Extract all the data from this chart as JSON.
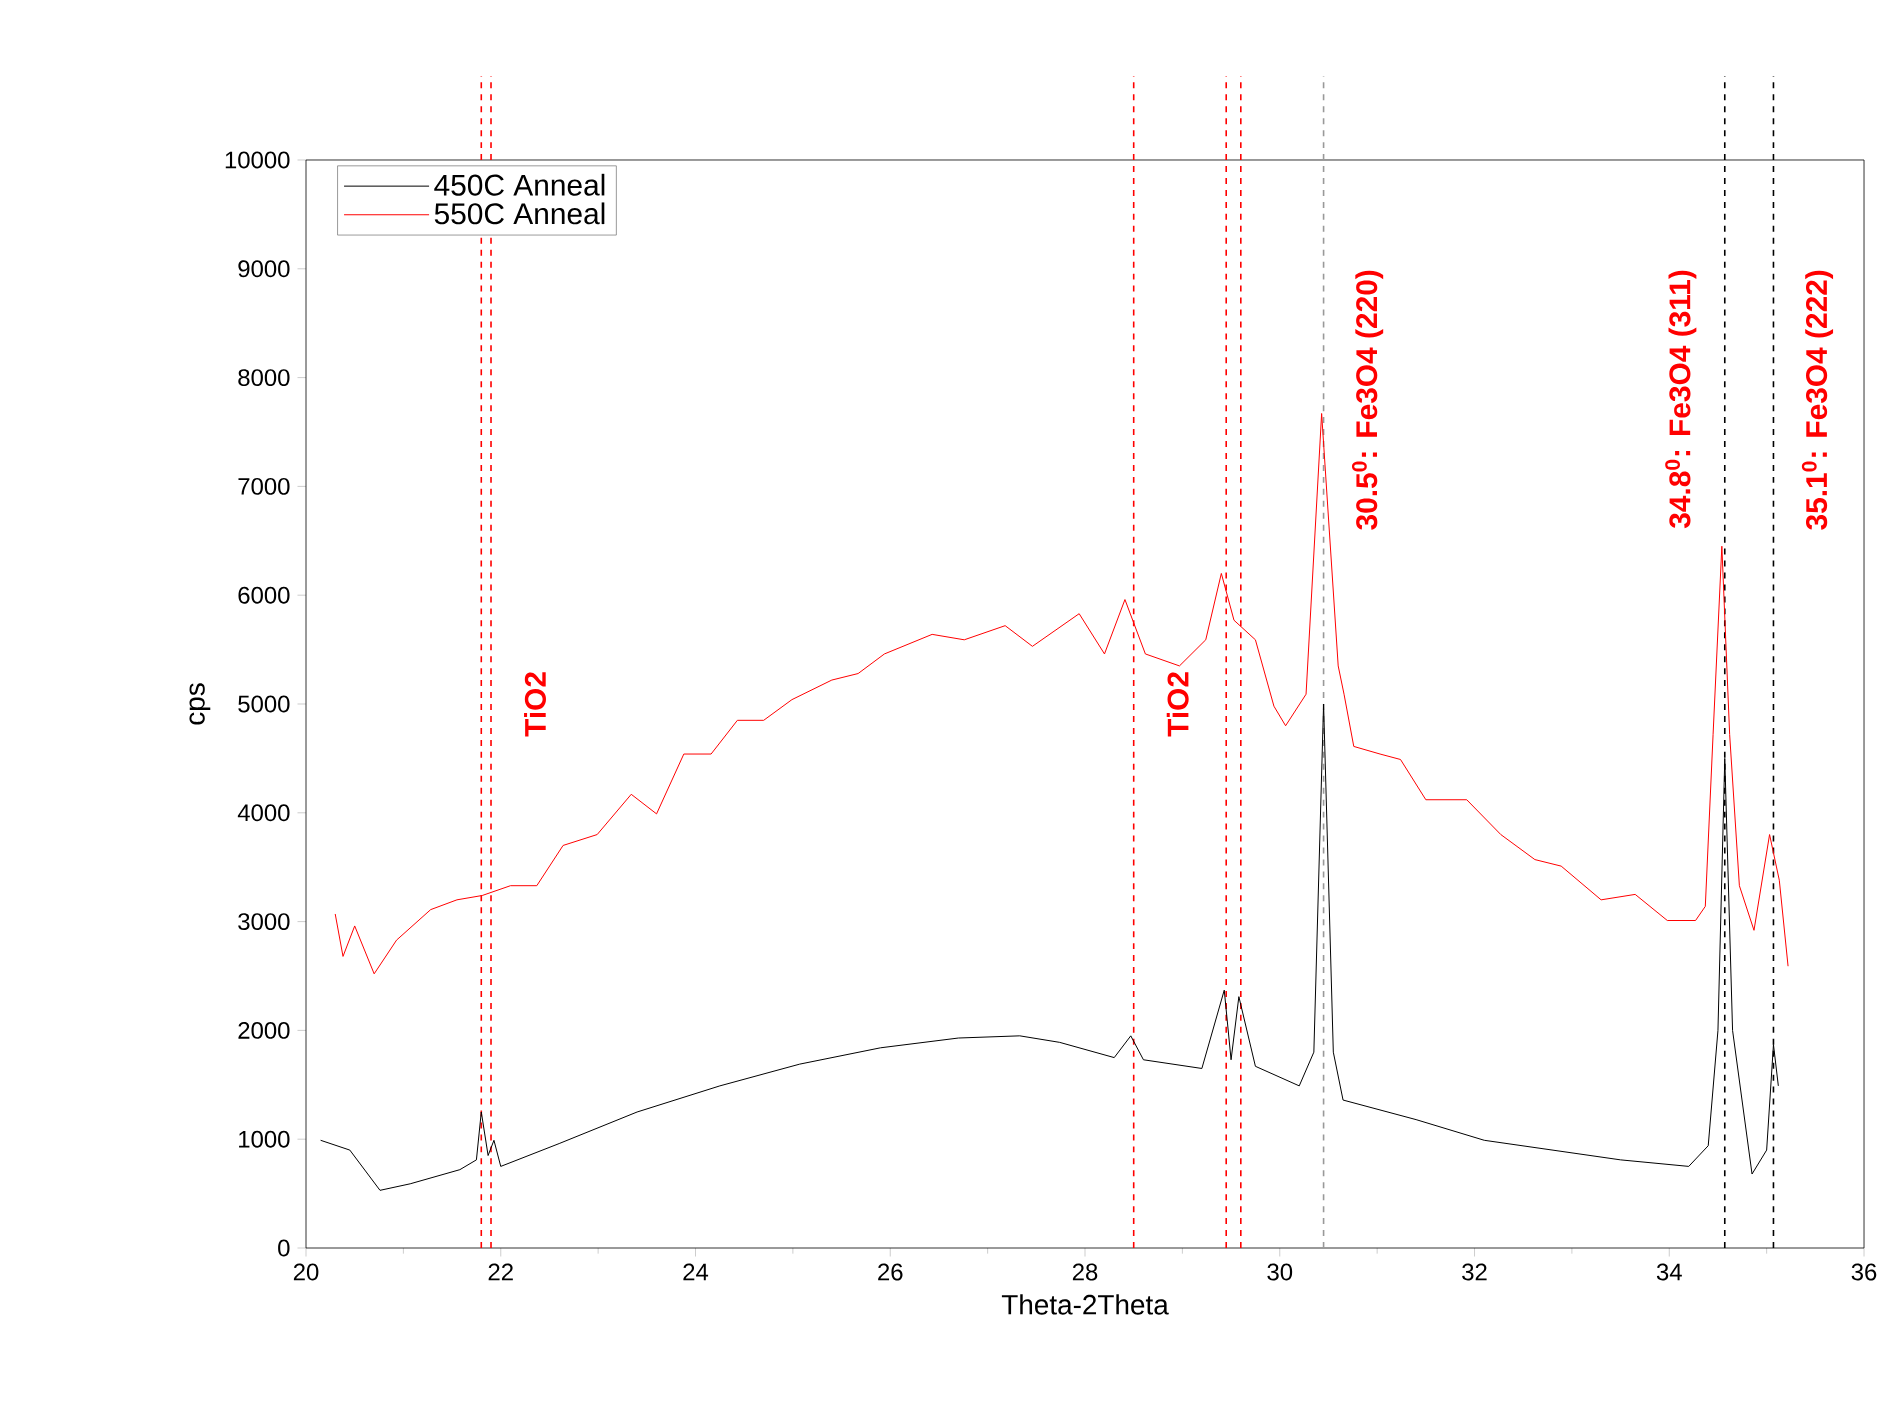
{
  "chart_data": {
    "type": "line",
    "xlabel": "Theta-2Theta",
    "ylabel": "cps",
    "xlim": [
      20,
      36
    ],
    "xticks": [
      20,
      22,
      24,
      26,
      28,
      30,
      32,
      34,
      36
    ],
    "ylim": [
      0,
      10000
    ],
    "yticks": [
      0,
      1000,
      2000,
      3000,
      4000,
      5000,
      6000,
      7000,
      8000,
      9000,
      10000
    ],
    "legend": "top left",
    "grid": false,
    "marker": "none",
    "line_style": "solid",
    "series": [
      {
        "name": "450C Anneal",
        "color": "#000000",
        "x": [
          20.15,
          20.45,
          20.76,
          21.07,
          21.58,
          21.75,
          21.8,
          21.87,
          21.93,
          22.0,
          22.6,
          23.4,
          24.25,
          25.07,
          25.9,
          26.7,
          27.33,
          27.74,
          28.3,
          28.47,
          28.6,
          29.2,
          29.43,
          29.5,
          29.58,
          29.75,
          30.2,
          30.35,
          30.45,
          30.55,
          30.65,
          31.4,
          32.1,
          33.5,
          34.2,
          34.4,
          34.5,
          34.57,
          34.65,
          34.85,
          35.0,
          35.07,
          35.12
        ],
        "values": [
          990,
          900,
          530,
          590,
          720,
          810,
          1250,
          850,
          990,
          750,
          960,
          1250,
          1490,
          1690,
          1840,
          1930,
          1950,
          1890,
          1750,
          1950,
          1730,
          1650,
          2370,
          1730,
          2310,
          1670,
          1490,
          1800,
          5000,
          1800,
          1360,
          1180,
          990,
          810,
          750,
          940,
          2000,
          4500,
          2000,
          680,
          900,
          1870,
          1490
        ]
      },
      {
        "name": "550C Anneal",
        "color": "#ff0000",
        "x": [
          20.3,
          20.38,
          20.5,
          20.7,
          20.93,
          21.28,
          21.55,
          21.81,
          22.1,
          22.37,
          22.64,
          22.99,
          23.34,
          23.6,
          23.88,
          24.16,
          24.43,
          24.7,
          24.99,
          25.4,
          25.67,
          25.94,
          26.43,
          26.76,
          27.18,
          27.46,
          27.94,
          28.2,
          28.41,
          28.62,
          28.97,
          29.24,
          29.4,
          29.53,
          29.75,
          29.94,
          30.06,
          30.27,
          30.43,
          30.6,
          30.66,
          30.76,
          31.03,
          31.24,
          31.5,
          31.92,
          32.27,
          32.62,
          32.89,
          33.3,
          33.65,
          33.98,
          34.27,
          34.37,
          34.45,
          34.54,
          34.62,
          34.72,
          34.87,
          35.03,
          35.13,
          35.22
        ],
        "values": [
          3070,
          2680,
          2960,
          2520,
          2830,
          3110,
          3200,
          3240,
          3330,
          3330,
          3700,
          3800,
          4170,
          3990,
          4540,
          4540,
          4850,
          4850,
          5040,
          5220,
          5280,
          5460,
          5640,
          5590,
          5720,
          5530,
          5830,
          5460,
          5960,
          5460,
          5350,
          5590,
          6200,
          5770,
          5590,
          4980,
          4800,
          5090,
          7670,
          5350,
          5090,
          4610,
          4540,
          4490,
          4120,
          4120,
          3800,
          3570,
          3510,
          3200,
          3250,
          3010,
          3010,
          3140,
          4720,
          6450,
          4720,
          3330,
          2920,
          3800,
          3380,
          2590
        ]
      }
    ],
    "ref_lines": [
      {
        "axis": "x",
        "value": 21.8,
        "color": "#ff0000",
        "line_style": "dashed"
      },
      {
        "axis": "x",
        "value": 21.9,
        "color": "#ff0000",
        "line_style": "dashed",
        "label": "TiO2"
      },
      {
        "axis": "x",
        "value": 28.5,
        "color": "#ff0000",
        "line_style": "dashed",
        "label": "TiO2"
      },
      {
        "axis": "x",
        "value": 29.45,
        "color": "#ff0000",
        "line_style": "dashed"
      },
      {
        "axis": "x",
        "value": 29.6,
        "color": "#ff0000",
        "line_style": "dashed"
      },
      {
        "axis": "x",
        "value": 30.45,
        "color": "#999999",
        "line_style": "dashed",
        "label": "30.5$^{0}$: Fe3O4 (220)"
      },
      {
        "axis": "x",
        "value": 34.57,
        "color": "#000000",
        "line_style": "dashed",
        "label": "34.8$^{0}$: Fe3O4 (311)"
      },
      {
        "axis": "x",
        "value": 35.07,
        "color": "#000000",
        "line_style": "dashed",
        "label": "35.1$^{0}$: Fe3O4 (222)"
      }
    ]
  }
}
